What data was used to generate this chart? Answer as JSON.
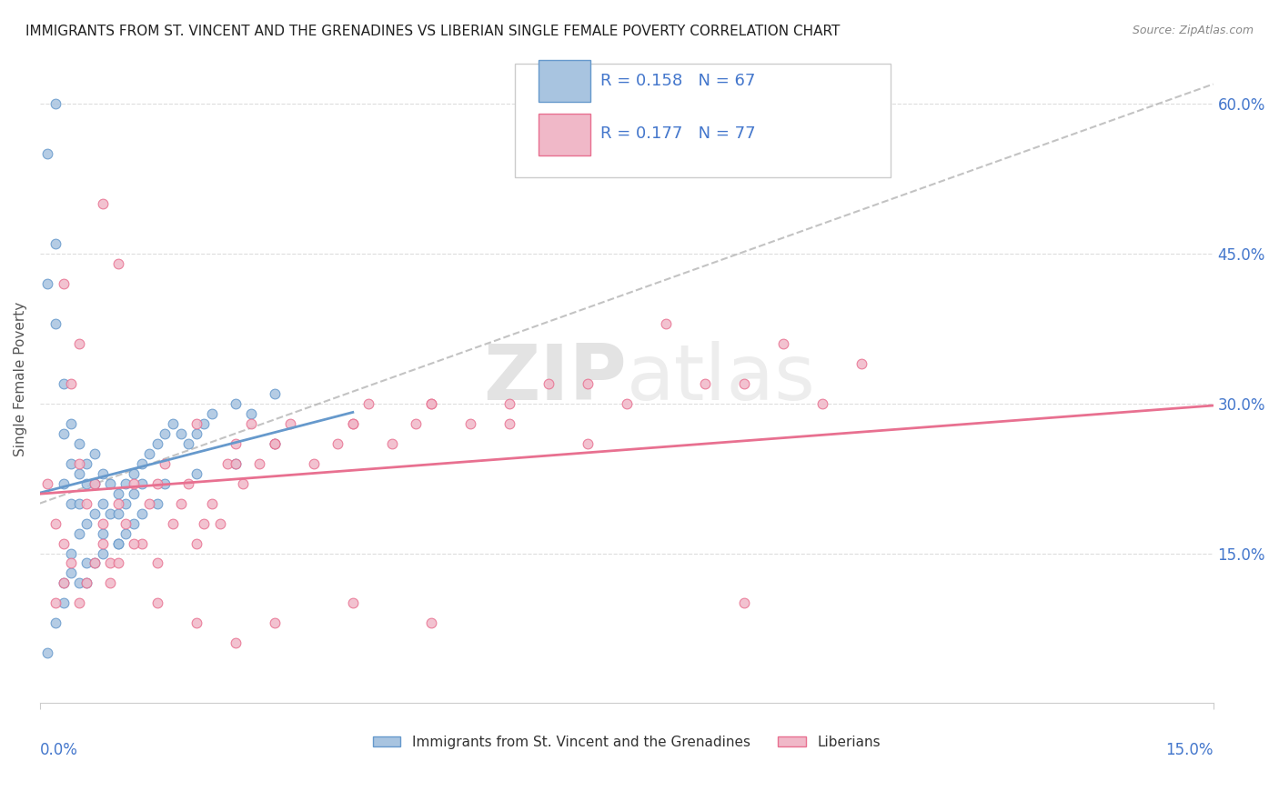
{
  "title": "IMMIGRANTS FROM ST. VINCENT AND THE GRENADINES VS LIBERIAN SINGLE FEMALE POVERTY CORRELATION CHART",
  "source": "Source: ZipAtlas.com",
  "ylabel": "Single Female Poverty",
  "x_label_bottom_left": "0.0%",
  "x_label_bottom_right": "15.0%",
  "xlim": [
    0.0,
    0.15
  ],
  "ylim": [
    0.0,
    0.65
  ],
  "y_ticks": [
    0.15,
    0.3,
    0.45,
    0.6
  ],
  "y_tick_labels": [
    "15.0%",
    "30.0%",
    "45.0%",
    "60.0%"
  ],
  "blue_R": 0.158,
  "blue_N": 67,
  "pink_R": 0.177,
  "pink_N": 77,
  "legend_blue_label": "Immigrants from St. Vincent and the Grenadines",
  "legend_pink_label": "Liberians",
  "blue_color": "#a8c4e0",
  "pink_color": "#f0b8c8",
  "blue_line_color": "#6699cc",
  "pink_line_color": "#e87090",
  "text_color": "#4477cc",
  "watermark_zip": "ZIP",
  "watermark_atlas": "atlas",
  "blue_scatter_x": [
    0.001,
    0.002,
    0.002,
    0.003,
    0.003,
    0.003,
    0.004,
    0.004,
    0.004,
    0.005,
    0.005,
    0.005,
    0.005,
    0.006,
    0.006,
    0.006,
    0.007,
    0.007,
    0.007,
    0.008,
    0.008,
    0.008,
    0.009,
    0.009,
    0.01,
    0.01,
    0.01,
    0.011,
    0.011,
    0.012,
    0.012,
    0.013,
    0.013,
    0.014,
    0.015,
    0.016,
    0.017,
    0.018,
    0.019,
    0.02,
    0.021,
    0.022,
    0.025,
    0.027,
    0.03,
    0.001,
    0.002,
    0.003,
    0.003,
    0.004,
    0.004,
    0.005,
    0.006,
    0.006,
    0.007,
    0.008,
    0.01,
    0.011,
    0.012,
    0.013,
    0.015,
    0.016,
    0.02,
    0.025,
    0.03,
    0.001,
    0.002
  ],
  "blue_scatter_y": [
    0.42,
    0.46,
    0.38,
    0.32,
    0.27,
    0.22,
    0.28,
    0.24,
    0.2,
    0.26,
    0.23,
    0.2,
    0.17,
    0.24,
    0.22,
    0.18,
    0.25,
    0.22,
    0.19,
    0.23,
    0.2,
    0.17,
    0.22,
    0.19,
    0.21,
    0.19,
    0.16,
    0.22,
    0.2,
    0.23,
    0.21,
    0.24,
    0.22,
    0.25,
    0.26,
    0.27,
    0.28,
    0.27,
    0.26,
    0.27,
    0.28,
    0.29,
    0.3,
    0.29,
    0.31,
    0.05,
    0.08,
    0.12,
    0.1,
    0.15,
    0.13,
    0.12,
    0.14,
    0.12,
    0.14,
    0.15,
    0.16,
    0.17,
    0.18,
    0.19,
    0.2,
    0.22,
    0.23,
    0.24,
    0.26,
    0.55,
    0.6
  ],
  "pink_scatter_x": [
    0.001,
    0.002,
    0.003,
    0.004,
    0.005,
    0.006,
    0.007,
    0.008,
    0.009,
    0.01,
    0.011,
    0.012,
    0.013,
    0.014,
    0.015,
    0.016,
    0.017,
    0.018,
    0.019,
    0.02,
    0.021,
    0.022,
    0.023,
    0.024,
    0.025,
    0.026,
    0.027,
    0.028,
    0.03,
    0.032,
    0.035,
    0.038,
    0.04,
    0.042,
    0.045,
    0.048,
    0.05,
    0.055,
    0.06,
    0.065,
    0.07,
    0.075,
    0.08,
    0.085,
    0.09,
    0.095,
    0.1,
    0.105,
    0.002,
    0.003,
    0.004,
    0.005,
    0.006,
    0.007,
    0.008,
    0.009,
    0.01,
    0.012,
    0.015,
    0.02,
    0.025,
    0.03,
    0.04,
    0.05,
    0.06,
    0.07,
    0.003,
    0.005,
    0.008,
    0.01,
    0.015,
    0.02,
    0.025,
    0.03,
    0.04,
    0.05,
    0.09
  ],
  "pink_scatter_y": [
    0.22,
    0.18,
    0.16,
    0.32,
    0.24,
    0.2,
    0.22,
    0.18,
    0.14,
    0.2,
    0.18,
    0.22,
    0.16,
    0.2,
    0.14,
    0.24,
    0.18,
    0.2,
    0.22,
    0.16,
    0.18,
    0.2,
    0.18,
    0.24,
    0.26,
    0.22,
    0.28,
    0.24,
    0.26,
    0.28,
    0.24,
    0.26,
    0.28,
    0.3,
    0.26,
    0.28,
    0.3,
    0.28,
    0.3,
    0.32,
    0.26,
    0.3,
    0.38,
    0.32,
    0.32,
    0.36,
    0.3,
    0.34,
    0.1,
    0.12,
    0.14,
    0.1,
    0.12,
    0.14,
    0.16,
    0.12,
    0.14,
    0.16,
    0.22,
    0.28,
    0.24,
    0.26,
    0.28,
    0.3,
    0.28,
    0.32,
    0.42,
    0.36,
    0.5,
    0.44,
    0.1,
    0.08,
    0.06,
    0.08,
    0.1,
    0.08,
    0.1
  ]
}
